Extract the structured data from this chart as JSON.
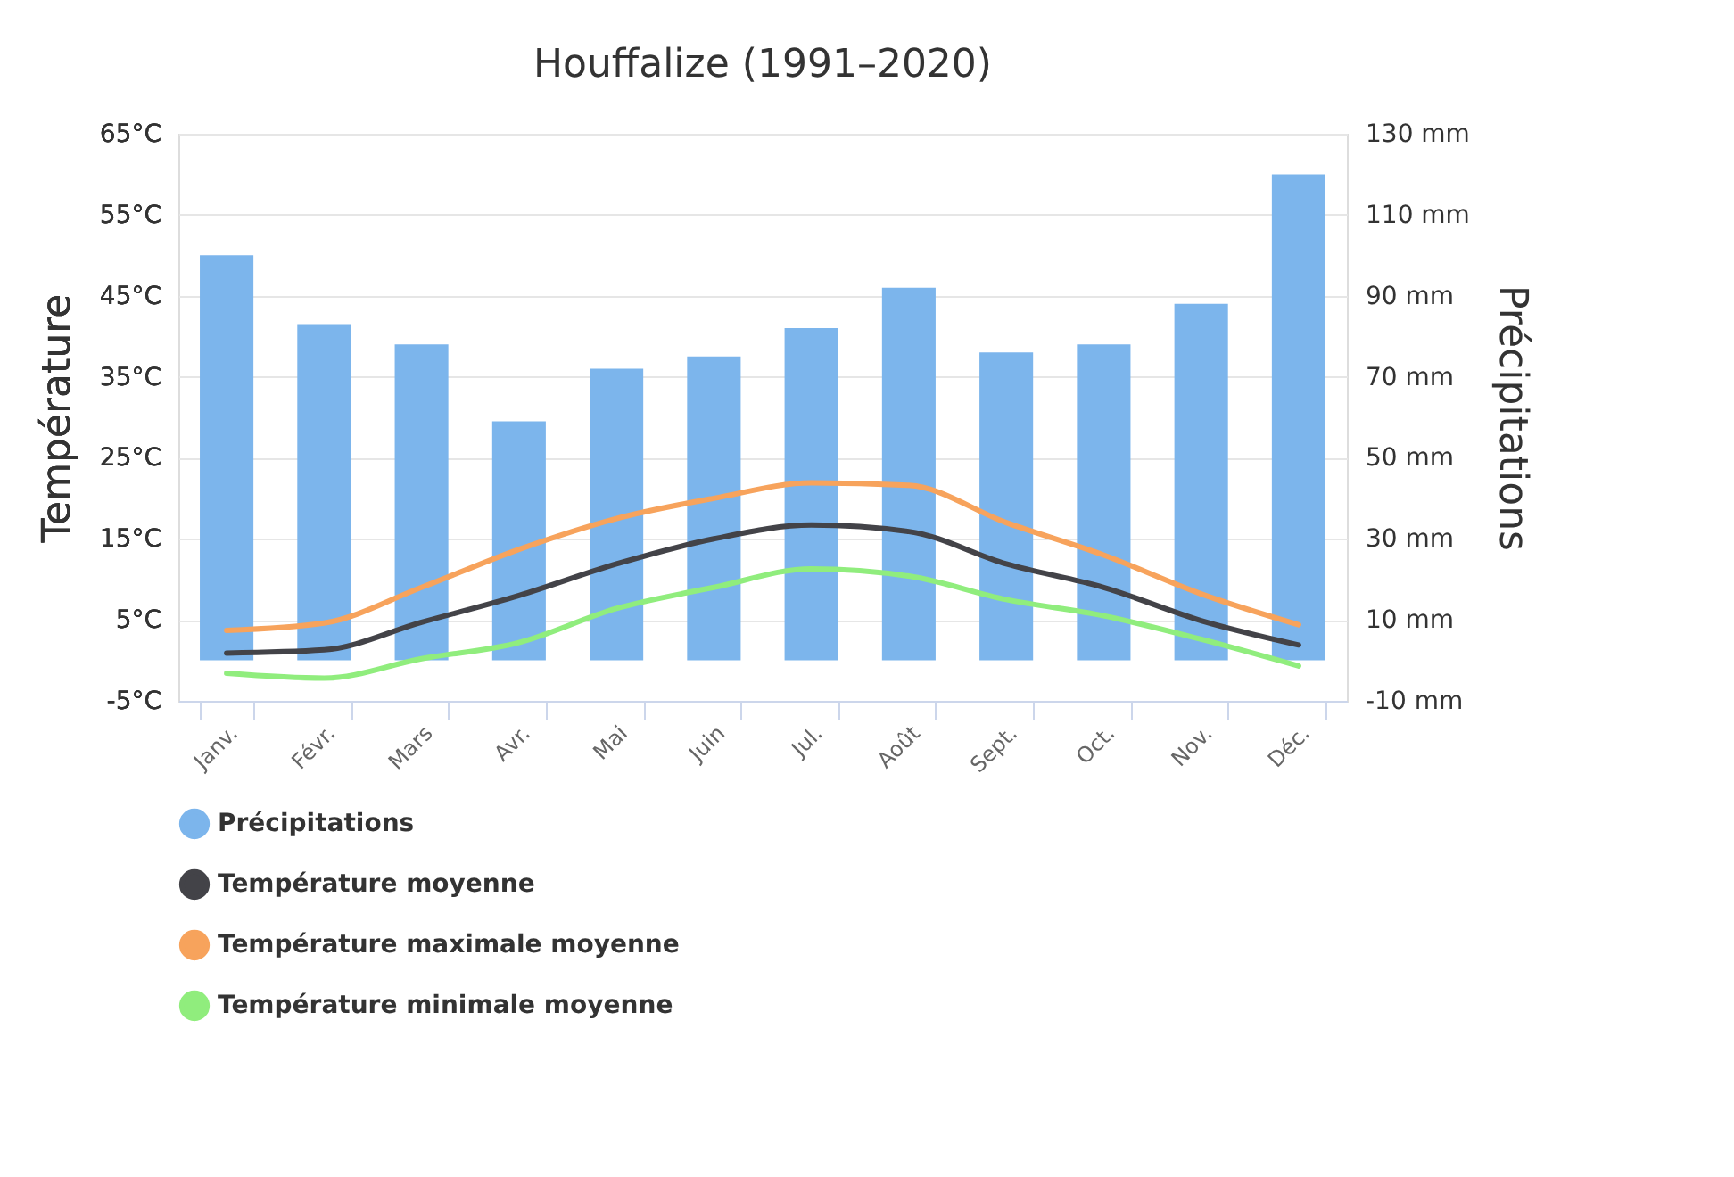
{
  "chart_data": {
    "type": "bar",
    "title": "Houffalize (1991–2020)",
    "ylabel": "Température",
    "y2label": "Précipitations",
    "categories": [
      "Janv.",
      "Févr.",
      "Mars",
      "Avr.",
      "Mai",
      "Juin",
      "Jul.",
      "Août",
      "Sept.",
      "Oct.",
      "Nov.",
      "Déc."
    ],
    "series": [
      {
        "name": "Précipitations",
        "axis": "y2",
        "color": "#7cb5ec",
        "values": [
          100,
          83,
          78,
          59,
          72,
          75,
          82,
          92,
          76,
          78,
          88,
          120
        ]
      },
      {
        "name": "Température moyenne",
        "type": "line",
        "color": "#434348",
        "values": [
          0.9,
          1.3,
          4.7,
          8.0,
          11.9,
          15.0,
          16.7,
          15.9,
          11.9,
          9.0,
          4.9,
          1.9
        ]
      },
      {
        "name": "Température maximale moyenne",
        "type": "line",
        "color": "#f7a35c",
        "values": [
          3.7,
          4.6,
          9.0,
          13.7,
          17.5,
          20.0,
          21.9,
          21.6,
          17.0,
          13.0,
          8.2,
          4.4
        ]
      },
      {
        "name": "Température minimale moyenne",
        "type": "line",
        "color": "#90ed7d",
        "values": [
          -1.6,
          -2.2,
          0.2,
          2.2,
          6.4,
          9.0,
          11.3,
          10.4,
          7.5,
          5.5,
          2.6,
          -0.7
        ]
      }
    ],
    "ylim": [
      -5,
      65
    ],
    "yticks": [
      {
        "value": -5,
        "label": "-5°C"
      },
      {
        "value": 5,
        "label": "5°C"
      },
      {
        "value": 15,
        "label": "15°C"
      },
      {
        "value": 25,
        "label": "25°C"
      },
      {
        "value": 35,
        "label": "35°C"
      },
      {
        "value": 45,
        "label": "45°C"
      },
      {
        "value": 55,
        "label": "55°C"
      },
      {
        "value": 65,
        "label": "65°C"
      }
    ],
    "y2lim": [
      -10,
      130
    ],
    "y2ticks": [
      {
        "value": -10,
        "label": "-10 mm"
      },
      {
        "value": 10,
        "label": "10 mm"
      },
      {
        "value": 30,
        "label": "30 mm"
      },
      {
        "value": 50,
        "label": "50 mm"
      },
      {
        "value": 70,
        "label": "70 mm"
      },
      {
        "value": 90,
        "label": "90 mm"
      },
      {
        "value": 110,
        "label": "110 mm"
      },
      {
        "value": 130,
        "label": "130 mm"
      }
    ],
    "grid": "y",
    "legend": "bottom",
    "line_style": "solid",
    "marker": "none"
  }
}
